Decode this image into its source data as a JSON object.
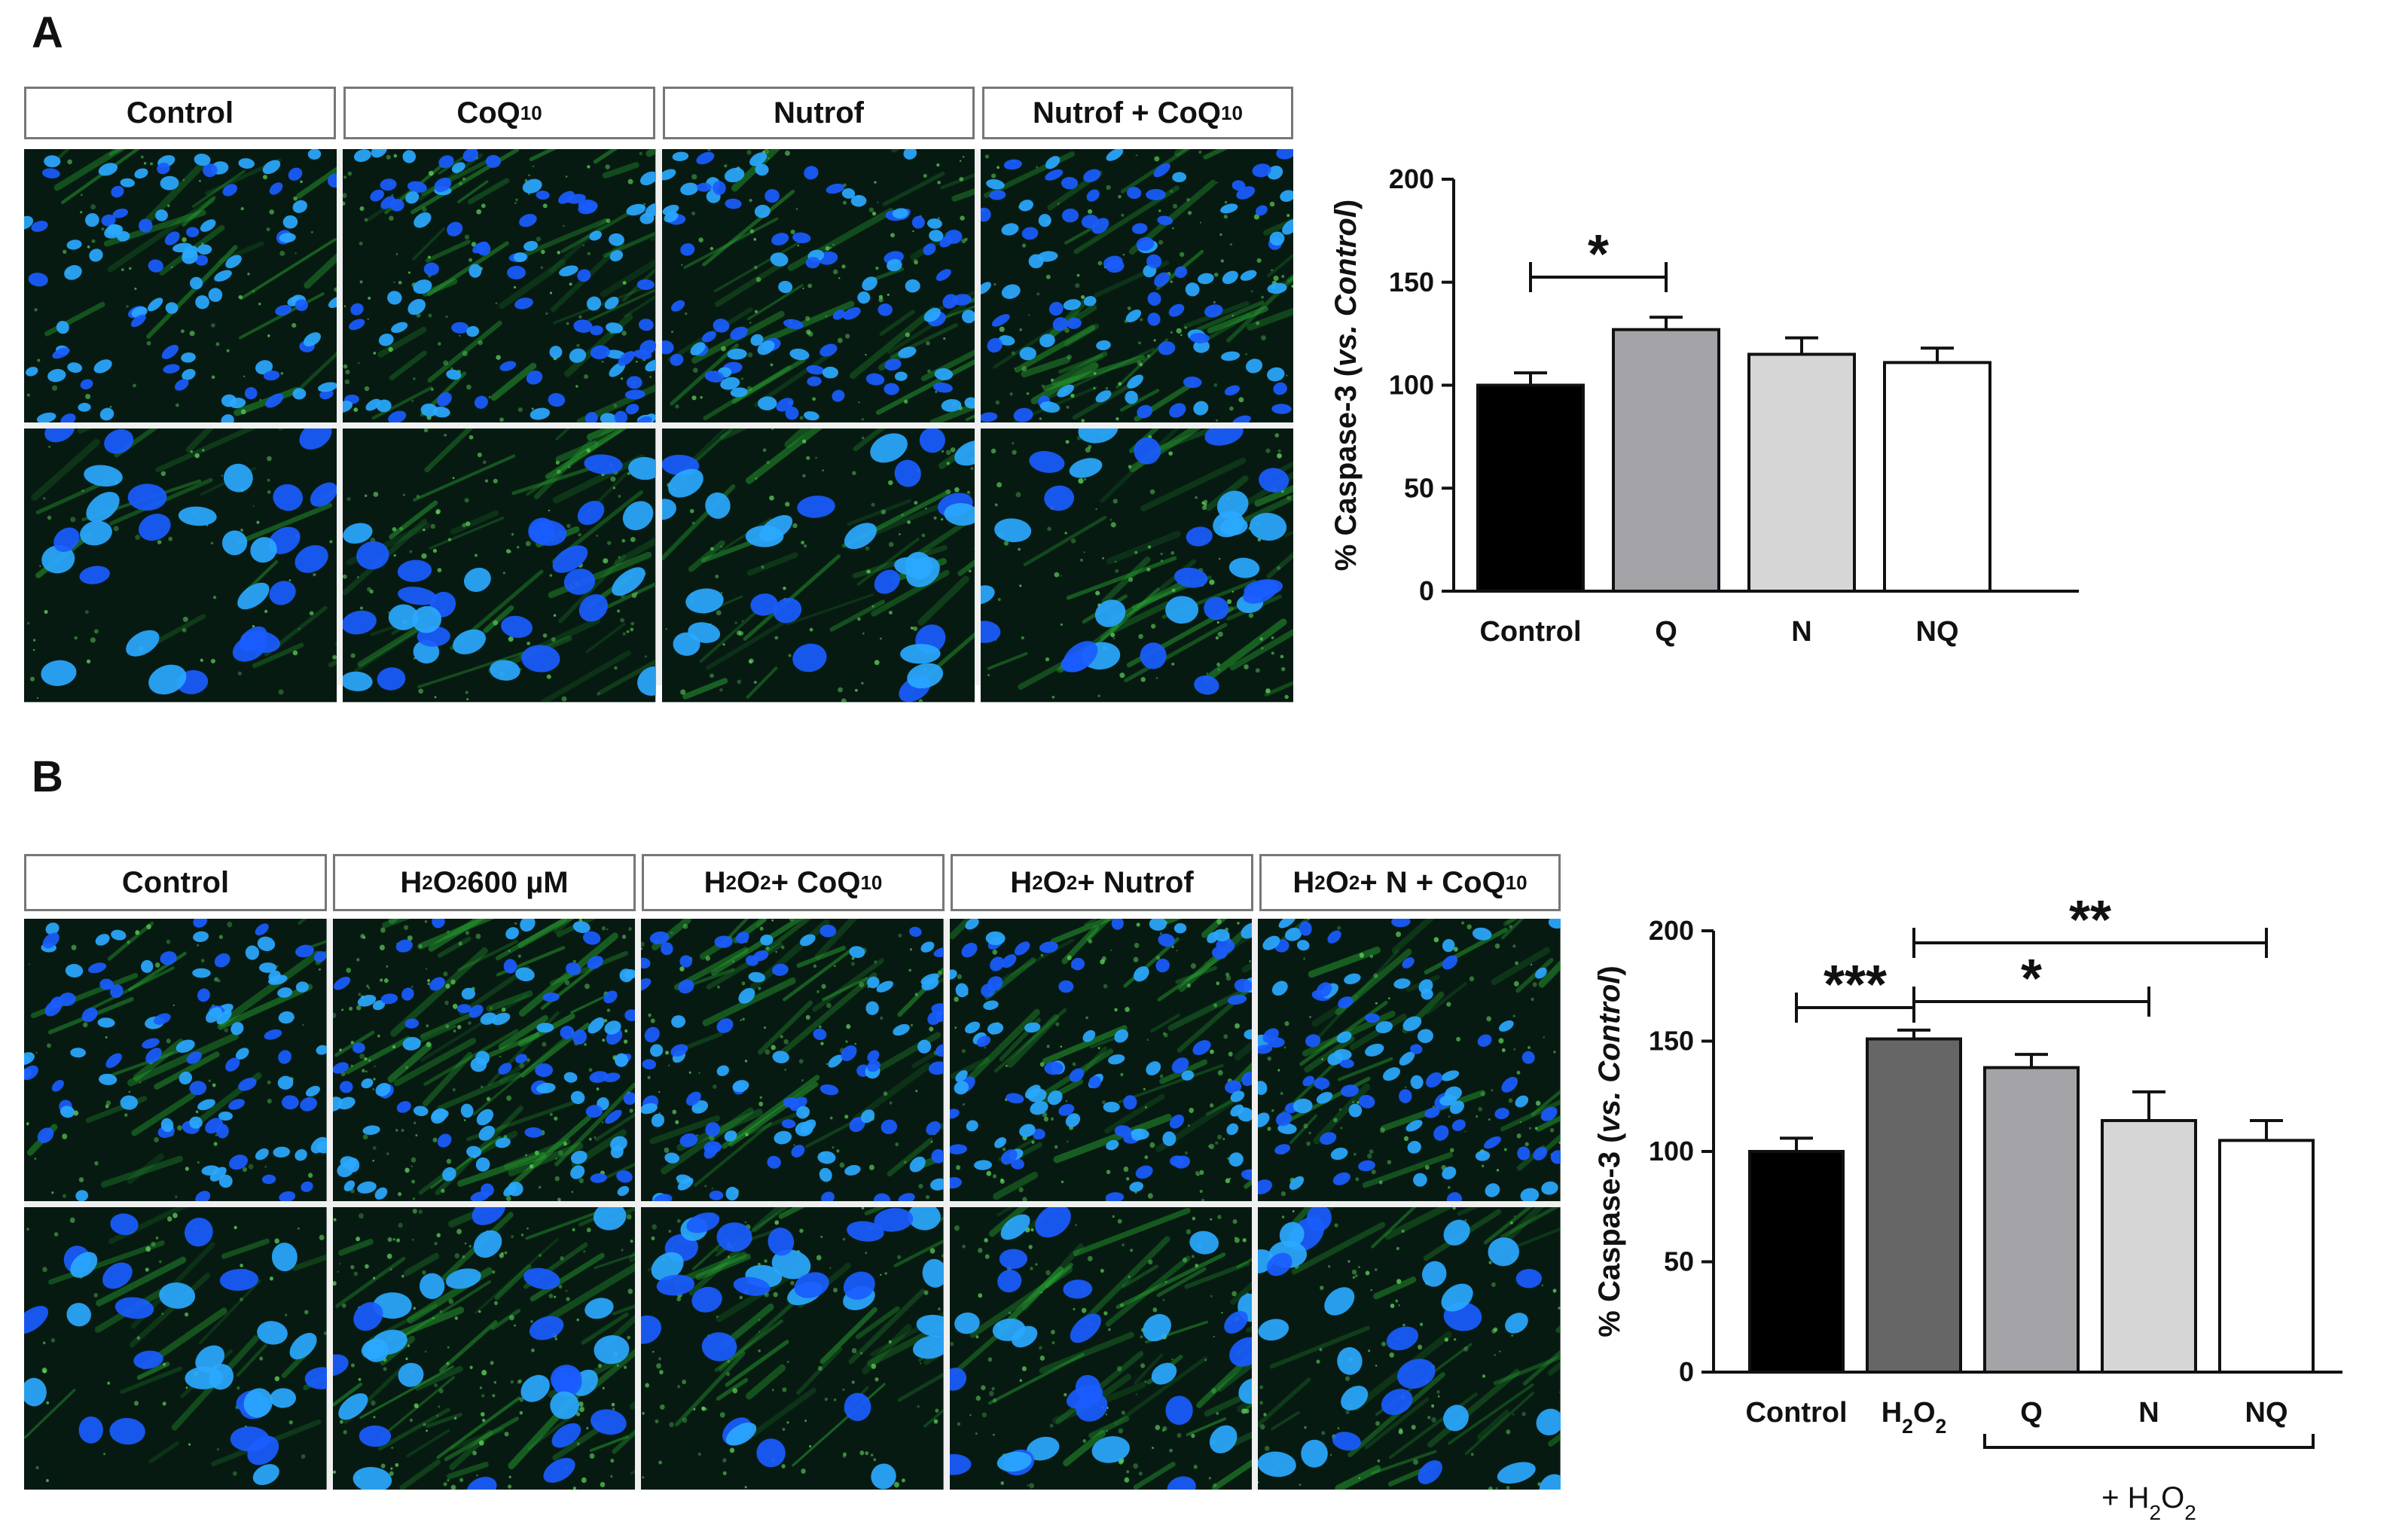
{
  "panel_a": {
    "letter": "A",
    "columns": [
      {
        "pre": "Control",
        "sub": "",
        "post": ""
      },
      {
        "pre": "CoQ",
        "sub": "10",
        "post": ""
      },
      {
        "pre": "Nutrof",
        "sub": "",
        "post": ""
      },
      {
        "pre": "Nutrof + CoQ",
        "sub": "10",
        "post": ""
      }
    ]
  },
  "panel_b": {
    "letter": "B",
    "columns": [
      {
        "pre": "Control",
        "sub": "",
        "post": ""
      },
      {
        "pre": "H",
        "sub": "2",
        "post": "O",
        "sub2": "2",
        "post2": " 600 µM"
      },
      {
        "pre": "H",
        "sub": "2",
        "post": "O",
        "sub2": "2",
        "post2": " + CoQ",
        "sub3": "10"
      },
      {
        "pre": "H",
        "sub": "2",
        "post": "O",
        "sub2": "2",
        "post2": " + Nutrof"
      },
      {
        "pre": "H",
        "sub": "2",
        "post": "O",
        "sub2": "2",
        "post2": " + N + CoQ",
        "sub3": "10"
      }
    ]
  },
  "colors": {
    "stain_nuclei": "#1a5cff",
    "stain_caspase": "#2aa832",
    "bar_black": "#000000",
    "bar_dark_gray": "#666666",
    "bar_mid_gray": "#a3a3a8",
    "bar_light_gray": "#d6d6d6",
    "bar_white": "#ffffff"
  },
  "chart_data": [
    {
      "type": "bar",
      "panel": "A",
      "ylabel_pre": "% Caspase-3 (",
      "ylabel_italic": "vs. Control",
      "ylabel_post": ")",
      "ylim": [
        0,
        200
      ],
      "yticks": [
        0,
        50,
        100,
        150,
        200
      ],
      "categories": [
        "Control",
        "Q",
        "N",
        "NQ"
      ],
      "values": [
        100,
        127,
        115,
        111
      ],
      "errors": [
        6,
        6,
        8,
        7
      ],
      "colors": [
        "#000000",
        "#a3a3a8",
        "#d6d6d6",
        "#ffffff"
      ],
      "significance": [
        {
          "from": "Control",
          "to": "Q",
          "label": "*"
        }
      ]
    },
    {
      "type": "bar",
      "panel": "B",
      "ylabel_pre": "% Caspase-3 (",
      "ylabel_italic": "vs. Control",
      "ylabel_post": ")",
      "ylim": [
        0,
        200
      ],
      "yticks": [
        0,
        50,
        100,
        150,
        200
      ],
      "categories": [
        "Control",
        "H2O2",
        "Q",
        "N",
        "NQ"
      ],
      "values": [
        100,
        151,
        138,
        114,
        105
      ],
      "errors": [
        6,
        4,
        6,
        13,
        9
      ],
      "colors": [
        "#000000",
        "#666666",
        "#a3a3a8",
        "#d6d6d6",
        "#ffffff"
      ],
      "significance": [
        {
          "from": "Control",
          "to": "H2O2",
          "label": "***"
        },
        {
          "from": "H2O2",
          "to": "N",
          "label": "*"
        },
        {
          "from": "H2O2",
          "to": "NQ",
          "label": "**"
        }
      ],
      "group_bracket": {
        "label": "+ H2O2",
        "categories": [
          "Q",
          "N",
          "NQ"
        ]
      }
    }
  ]
}
